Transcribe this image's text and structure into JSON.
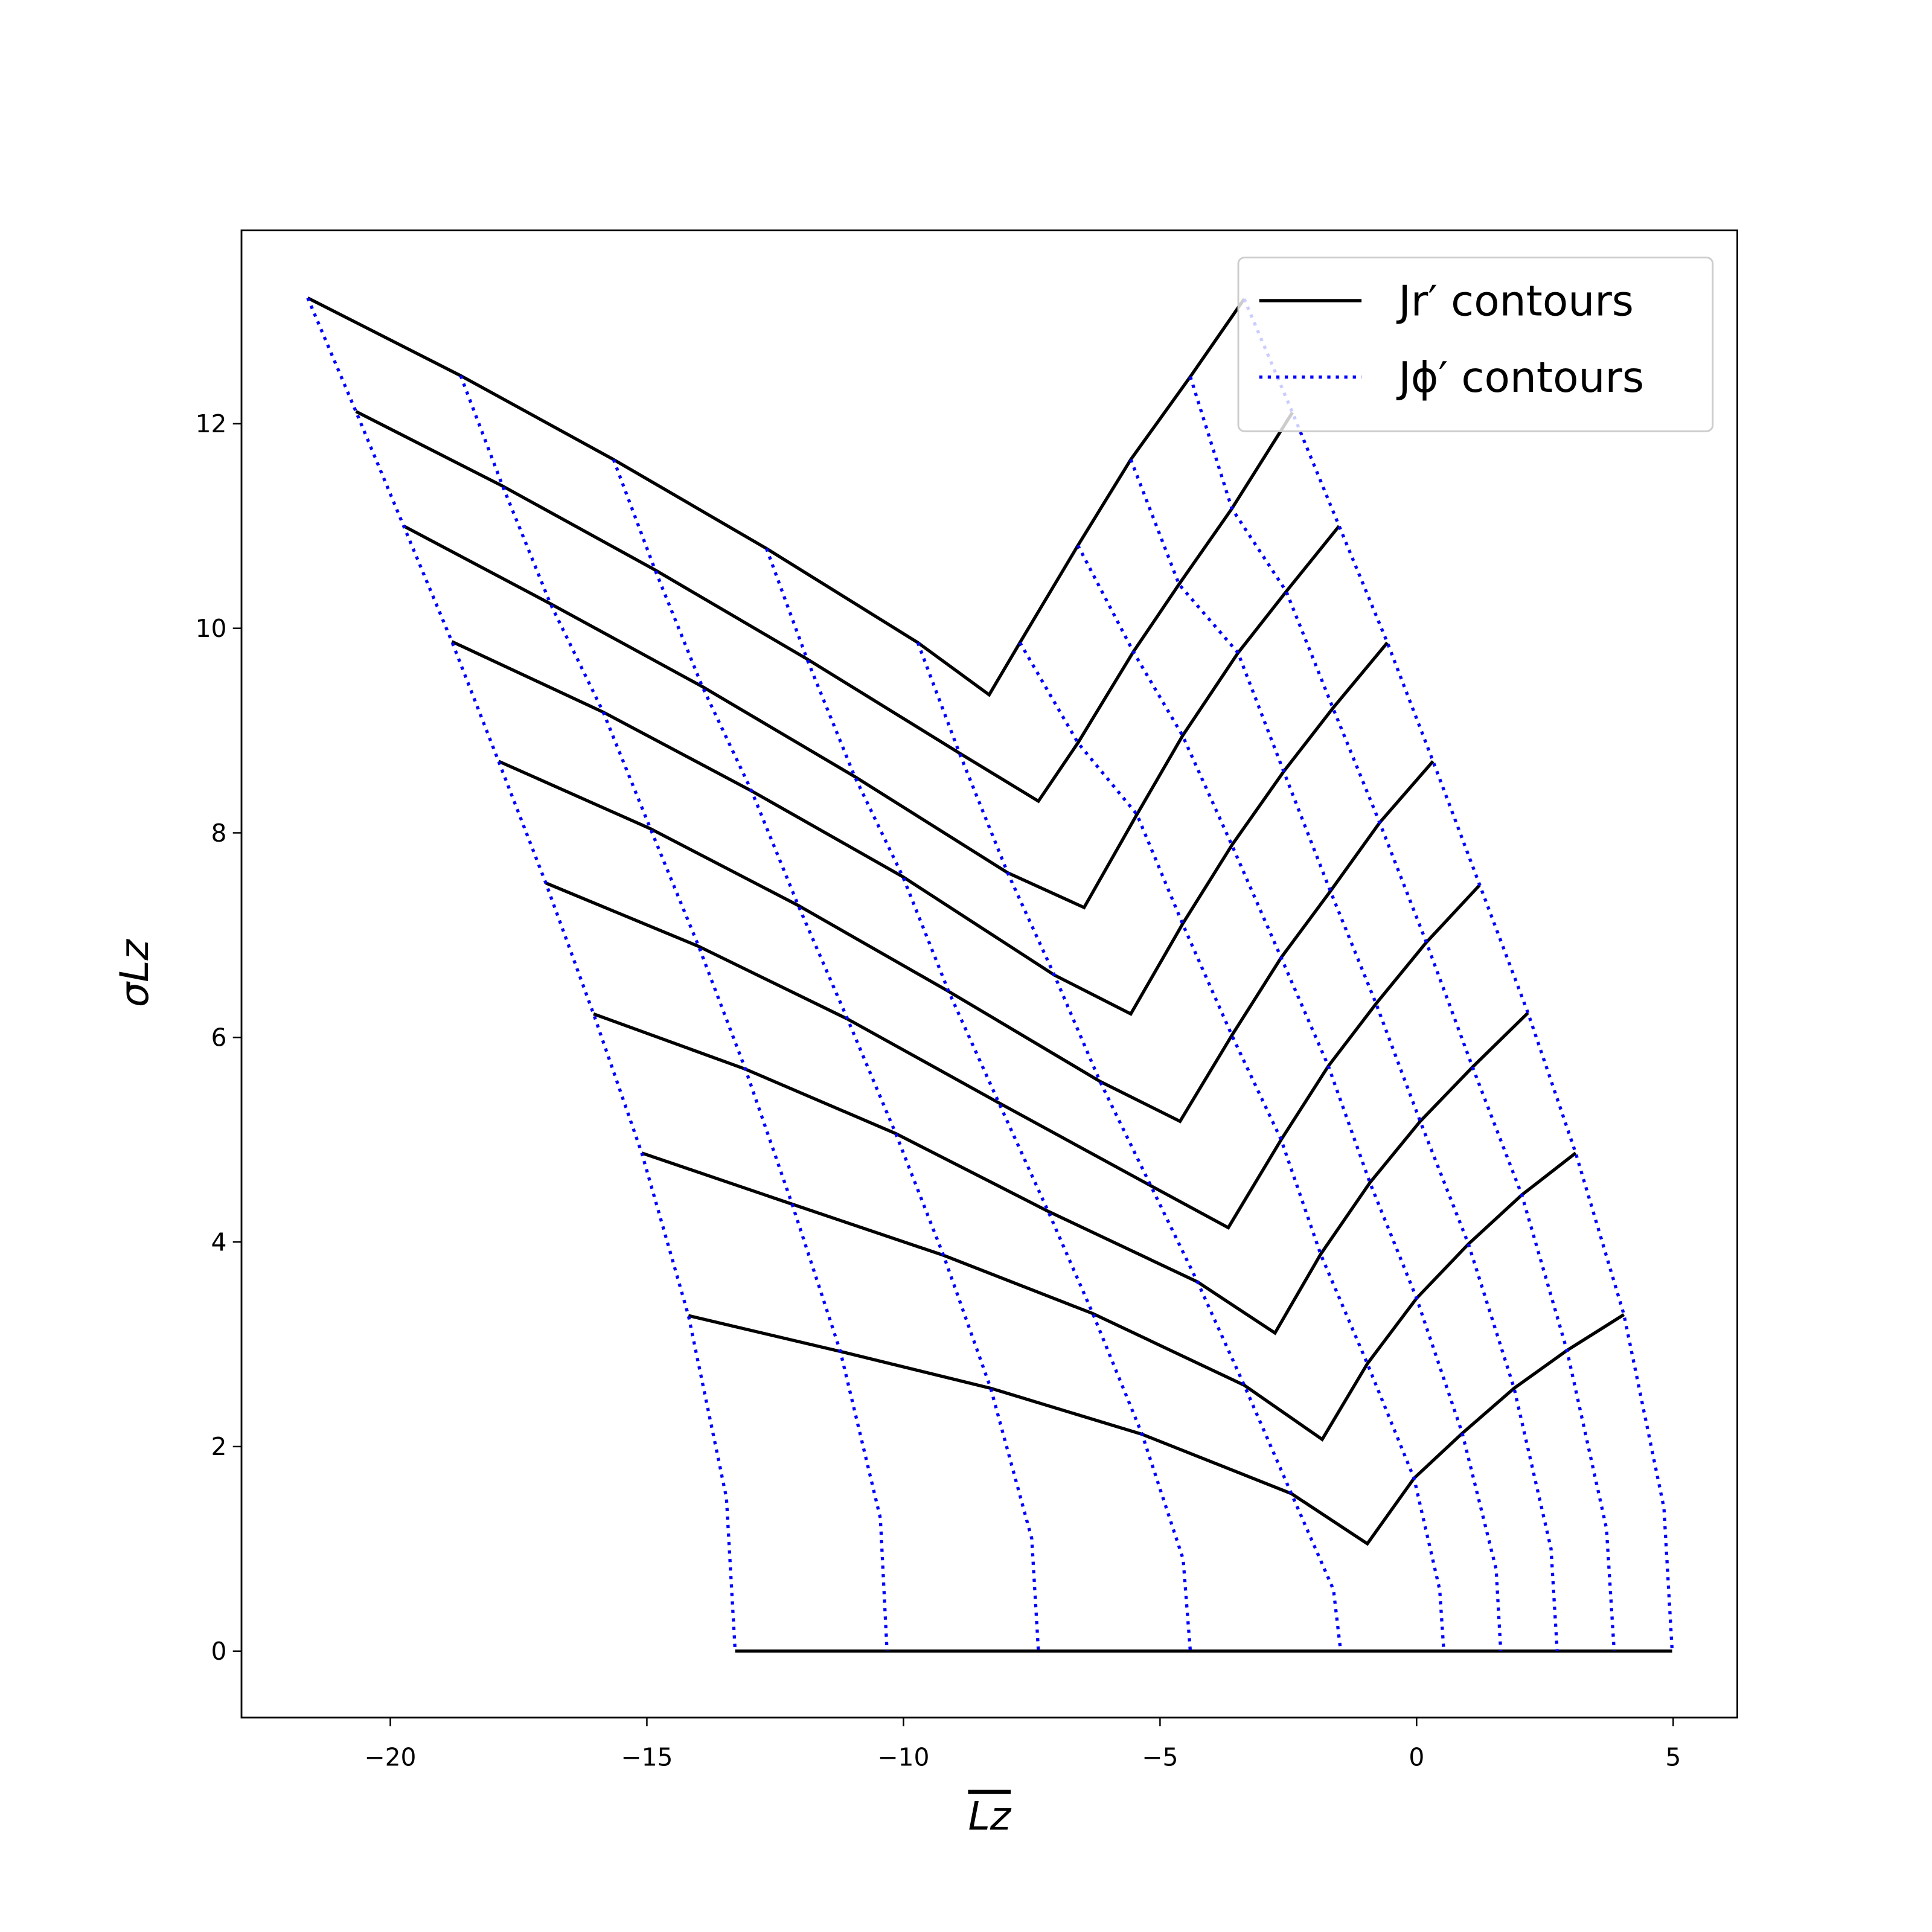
{
  "chart_data": {
    "type": "line",
    "xlabel": "Lz",
    "ylabel": "σLz",
    "xlim": [
      -22.9,
      6.25
    ],
    "ylim": [
      -0.65,
      13.89
    ],
    "xticks": [
      {
        "value": -20,
        "label": "−20"
      },
      {
        "value": -15,
        "label": "−15"
      },
      {
        "value": -10,
        "label": "−10"
      },
      {
        "value": -5,
        "label": "−5"
      },
      0,
      5
    ],
    "yticks": [
      0,
      2,
      4,
      6,
      8,
      10,
      12
    ],
    "grid": false,
    "legend": "upper right",
    "series": [
      {
        "name": "Jr′ contours",
        "color": "#000000",
        "style": "solid",
        "lines": [
          {
            "x": [
              -21.61,
              -18.63,
              -15.65,
              -12.67,
              -9.72,
              -8.33,
              -7.73,
              -6.6,
              -5.57,
              -4.41,
              -3.36
            ],
            "y": [
              13.23,
              12.47,
              11.65,
              10.78,
              9.86,
              9.35,
              9.86,
              10.81,
              11.65,
              12.46,
              13.22
            ]
          },
          {
            "x": [
              -20.67,
              -17.81,
              -14.84,
              -11.88,
              -8.91,
              -7.37,
              -6.6,
              -5.52,
              -4.63,
              -3.6,
              -2.42
            ],
            "y": [
              12.12,
              11.39,
              10.57,
              9.7,
              8.78,
              8.31,
              8.88,
              9.77,
              10.43,
              11.17,
              12.11
            ]
          },
          {
            "x": [
              -19.74,
              -16.88,
              -13.92,
              -10.95,
              -7.97,
              -6.48,
              -5.45,
              -4.56,
              -3.48,
              -2.54,
              -1.51
            ],
            "y": [
              11.0,
              10.24,
              9.43,
              8.55,
              7.61,
              7.27,
              8.18,
              8.95,
              9.76,
              10.36,
              11.0
            ]
          },
          {
            "x": [
              -18.8,
              -15.85,
              -12.96,
              -10.01,
              -7.06,
              -5.57,
              -4.56,
              -3.6,
              -2.59,
              -1.63,
              -0.57
            ],
            "y": [
              9.87,
              9.18,
              8.41,
              7.57,
              6.61,
              6.23,
              7.11,
              7.88,
              8.6,
              9.22,
              9.86
            ]
          },
          {
            "x": [
              -17.89,
              -14.93,
              -12.05,
              -9.12,
              -6.17,
              -4.61,
              -3.6,
              -2.64,
              -1.68,
              -0.72,
              0.32
            ],
            "y": [
              8.7,
              8.04,
              7.29,
              6.45,
              5.57,
              5.18,
              6.02,
              6.78,
              7.43,
              8.1,
              8.7
            ]
          },
          {
            "x": [
              -16.97,
              -13.99,
              -11.09,
              -8.14,
              -5.18,
              -3.67,
              -2.64,
              -1.72,
              -0.79,
              0.19,
              1.23
            ],
            "y": [
              7.51,
              6.89,
              6.18,
              5.36,
              4.55,
              4.14,
              5.0,
              5.72,
              6.33,
              6.93,
              7.49
            ]
          },
          {
            "x": [
              -16.04,
              -13.08,
              -10.15,
              -7.18,
              -4.27,
              -2.76,
              -1.87,
              -0.91,
              0.07,
              1.09,
              2.17
            ],
            "y": [
              6.23,
              5.69,
              5.06,
              4.3,
              3.61,
              3.11,
              3.88,
              4.58,
              5.18,
              5.71,
              6.24
            ]
          },
          {
            "x": [
              -15.1,
              -12.17,
              -9.22,
              -6.31,
              -3.36,
              -1.84,
              -0.96,
              0.0,
              1.01,
              2.05,
              3.1
            ],
            "y": [
              4.87,
              4.37,
              3.87,
              3.3,
              2.6,
              2.07,
              2.81,
              3.45,
              3.98,
              4.46,
              4.87
            ]
          },
          {
            "x": [
              -14.19,
              -11.23,
              -8.3,
              -5.35,
              -2.44,
              -0.96,
              -0.05,
              0.89,
              1.9,
              2.93,
              4.04
            ],
            "y": [
              3.28,
              2.93,
              2.57,
              2.12,
              1.54,
              1.05,
              1.69,
              2.13,
              2.57,
              2.94,
              3.29
            ]
          },
          {
            "x": [
              -13.28,
              4.98
            ],
            "y": [
              0,
              0
            ]
          }
        ]
      },
      {
        "name": "Jϕ′ contours",
        "color": "#0000ff",
        "style": "dotted",
        "lines": [
          {
            "x": [
              -21.61,
              -20.67,
              -19.74,
              -18.8,
              -17.89,
              -16.97,
              -16.04,
              -15.1,
              -14.19,
              -13.45,
              -13.28
            ],
            "y": [
              13.23,
              12.12,
              11.0,
              9.87,
              8.7,
              7.51,
              6.23,
              4.87,
              3.28,
              1.5,
              0
            ]
          },
          {
            "x": [
              -18.63,
              -17.81,
              -16.88,
              -15.85,
              -14.93,
              -13.99,
              -13.08,
              -12.17,
              -11.23,
              -10.45,
              -10.32
            ],
            "y": [
              12.47,
              11.39,
              10.24,
              9.18,
              8.04,
              6.89,
              5.69,
              4.37,
              2.93,
              1.3,
              0
            ]
          },
          {
            "x": [
              -15.65,
              -14.84,
              -13.92,
              -12.96,
              -12.05,
              -11.09,
              -10.15,
              -9.22,
              -8.3,
              -7.5,
              -7.37
            ],
            "y": [
              11.65,
              10.57,
              9.43,
              8.41,
              7.29,
              6.18,
              5.06,
              3.87,
              2.57,
              1.1,
              0
            ]
          },
          {
            "x": [
              -12.67,
              -11.88,
              -10.95,
              -10.01,
              -9.12,
              -8.14,
              -7.18,
              -6.31,
              -5.35,
              -4.55,
              -4.41
            ],
            "y": [
              10.78,
              9.7,
              8.55,
              7.57,
              6.45,
              5.36,
              4.3,
              3.3,
              2.12,
              0.9,
              0
            ]
          },
          {
            "x": [
              -9.72,
              -8.91,
              -7.97,
              -7.06,
              -6.17,
              -5.18,
              -4.27,
              -3.36,
              -2.44,
              -1.62,
              -1.48
            ],
            "y": [
              9.86,
              8.78,
              7.61,
              6.61,
              5.57,
              4.55,
              3.61,
              2.6,
              1.54,
              0.6,
              0
            ]
          },
          {
            "x": [
              -7.73,
              -6.6,
              -5.45,
              -4.56,
              -3.6,
              -2.64,
              -1.87,
              -0.96,
              -0.05,
              0.45,
              0.53
            ],
            "y": [
              9.86,
              8.88,
              8.18,
              7.11,
              6.02,
              5.0,
              3.88,
              2.81,
              1.69,
              0.6,
              0
            ]
          },
          {
            "x": [
              -6.6,
              -5.52,
              -4.56,
              -3.6,
              -2.64,
              -1.72,
              -0.91,
              0.0,
              0.89,
              1.55,
              1.64
            ],
            "y": [
              10.81,
              9.77,
              8.95,
              7.88,
              6.78,
              5.72,
              4.58,
              3.45,
              2.13,
              0.8,
              0
            ]
          },
          {
            "x": [
              -5.57,
              -4.63,
              -3.48,
              -2.59,
              -1.68,
              -0.79,
              0.07,
              1.01,
              1.9,
              2.62,
              2.74
            ],
            "y": [
              11.65,
              10.43,
              9.76,
              8.6,
              7.43,
              6.33,
              5.18,
              3.98,
              2.57,
              1.0,
              0
            ]
          },
          {
            "x": [
              -4.41,
              -3.6,
              -2.54,
              -1.63,
              -0.72,
              0.19,
              1.09,
              2.05,
              2.93,
              3.7,
              3.85
            ],
            "y": [
              12.46,
              11.17,
              10.36,
              9.22,
              8.1,
              6.93,
              5.71,
              4.46,
              2.94,
              1.2,
              0
            ]
          },
          {
            "x": [
              -3.36,
              -2.42,
              -1.51,
              -0.57,
              0.32,
              1.23,
              2.17,
              3.1,
              4.04,
              4.82,
              4.98
            ],
            "y": [
              13.22,
              12.11,
              11.0,
              9.86,
              8.7,
              7.49,
              6.24,
              4.87,
              3.29,
              1.4,
              0
            ]
          }
        ]
      }
    ]
  }
}
